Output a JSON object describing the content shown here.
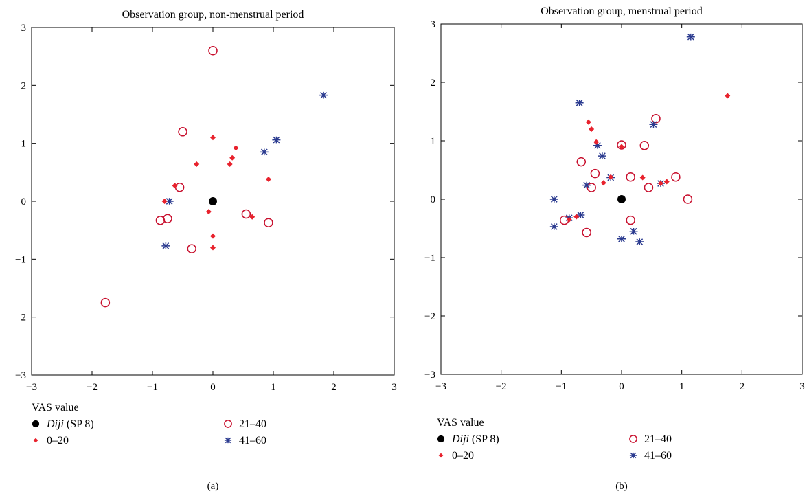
{
  "colors": {
    "diji": "#000000",
    "low": "#e8222d",
    "mid": "#c8102e",
    "high": "#2a3a8f",
    "axis": "#000000"
  },
  "legend_title": "VAS value",
  "legend_items": [
    {
      "key": "diji",
      "label_em": "Diji",
      "label_rest": " (SP 8)",
      "marker": "filled-circle"
    },
    {
      "key": "mid",
      "label_em": "",
      "label_rest": "21–40",
      "marker": "open-circle"
    },
    {
      "key": "low",
      "label_em": "",
      "label_rest": "0–20",
      "marker": "diamond"
    },
    {
      "key": "high",
      "label_em": "",
      "label_rest": "41–60",
      "marker": "asterisk"
    }
  ],
  "chart_data": [
    {
      "type": "scatter",
      "title": "Observation group, non-menstrual period",
      "caption": "(a)",
      "xlim": [
        -3,
        3
      ],
      "ylim": [
        -3,
        3
      ],
      "xticks": [
        -3,
        -2,
        -1,
        0,
        1,
        2,
        3
      ],
      "yticks": [
        -3,
        -2,
        -1,
        0,
        1,
        2,
        3
      ],
      "series": [
        {
          "name": "Diji (SP 8)",
          "key": "diji",
          "marker": "filled-circle",
          "points": [
            [
              0,
              0
            ]
          ]
        },
        {
          "name": "0–20",
          "key": "low",
          "marker": "diamond",
          "points": [
            [
              0.0,
              1.1
            ],
            [
              0.38,
              0.92
            ],
            [
              0.32,
              0.75
            ],
            [
              0.28,
              0.64
            ],
            [
              -0.27,
              0.64
            ],
            [
              -0.63,
              0.27
            ],
            [
              -0.8,
              0.0
            ],
            [
              0.92,
              0.38
            ],
            [
              -0.07,
              -0.18
            ],
            [
              0.65,
              -0.27
            ],
            [
              0.0,
              -0.6
            ],
            [
              0.0,
              -0.8
            ]
          ]
        },
        {
          "name": "21–40",
          "key": "mid",
          "marker": "open-circle",
          "points": [
            [
              0.0,
              2.6
            ],
            [
              -0.5,
              1.2
            ],
            [
              -0.55,
              0.24
            ],
            [
              -0.87,
              -0.33
            ],
            [
              -0.75,
              -0.3
            ],
            [
              -0.35,
              -0.82
            ],
            [
              0.55,
              -0.22
            ],
            [
              0.92,
              -0.37
            ],
            [
              -1.78,
              -1.75
            ]
          ]
        },
        {
          "name": "41–60",
          "key": "high",
          "marker": "asterisk",
          "points": [
            [
              1.83,
              1.83
            ],
            [
              1.05,
              1.06
            ],
            [
              0.85,
              0.85
            ],
            [
              -0.72,
              0.0
            ],
            [
              -0.78,
              -0.77
            ]
          ]
        }
      ]
    },
    {
      "type": "scatter",
      "title": "Observation group, menstrual period",
      "caption": "(b)",
      "xlim": [
        -3,
        3
      ],
      "ylim": [
        -3,
        3
      ],
      "xticks": [
        -3,
        -2,
        -1,
        0,
        1,
        2,
        3
      ],
      "yticks": [
        -3,
        -2,
        -1,
        0,
        1,
        2,
        3
      ],
      "series": [
        {
          "name": "Diji (SP 8)",
          "key": "diji",
          "marker": "filled-circle",
          "points": [
            [
              0,
              0
            ]
          ]
        },
        {
          "name": "0–20",
          "key": "low",
          "marker": "diamond",
          "points": [
            [
              1.76,
              1.77
            ],
            [
              -0.55,
              1.32
            ],
            [
              -0.5,
              1.2
            ],
            [
              -0.42,
              0.98
            ],
            [
              0.0,
              0.9
            ],
            [
              -0.18,
              0.38
            ],
            [
              -0.3,
              0.28
            ],
            [
              0.35,
              0.37
            ],
            [
              0.75,
              0.3
            ],
            [
              0.65,
              0.27
            ],
            [
              -0.75,
              -0.3
            ],
            [
              -0.87,
              -0.35
            ]
          ]
        },
        {
          "name": "21–40",
          "key": "mid",
          "marker": "open-circle",
          "points": [
            [
              0.57,
              1.38
            ],
            [
              0.0,
              0.93
            ],
            [
              0.38,
              0.92
            ],
            [
              -0.67,
              0.64
            ],
            [
              -0.44,
              0.44
            ],
            [
              0.15,
              0.38
            ],
            [
              0.9,
              0.38
            ],
            [
              -0.5,
              0.2
            ],
            [
              0.45,
              0.2
            ],
            [
              1.1,
              0.0
            ],
            [
              -0.95,
              -0.36
            ],
            [
              0.15,
              -0.36
            ],
            [
              -0.58,
              -0.57
            ]
          ]
        },
        {
          "name": "41–60",
          "key": "high",
          "marker": "asterisk",
          "points": [
            [
              1.15,
              2.78
            ],
            [
              -0.7,
              1.65
            ],
            [
              0.53,
              1.28
            ],
            [
              -0.4,
              0.92
            ],
            [
              -0.32,
              0.74
            ],
            [
              -0.58,
              0.24
            ],
            [
              -0.18,
              0.37
            ],
            [
              0.65,
              0.27
            ],
            [
              -1.12,
              0.0
            ],
            [
              -1.12,
              -0.47
            ],
            [
              -0.87,
              -0.32
            ],
            [
              -0.68,
              -0.27
            ],
            [
              0.2,
              -0.55
            ],
            [
              0.0,
              -0.68
            ],
            [
              0.3,
              -0.73
            ]
          ]
        }
      ]
    }
  ]
}
